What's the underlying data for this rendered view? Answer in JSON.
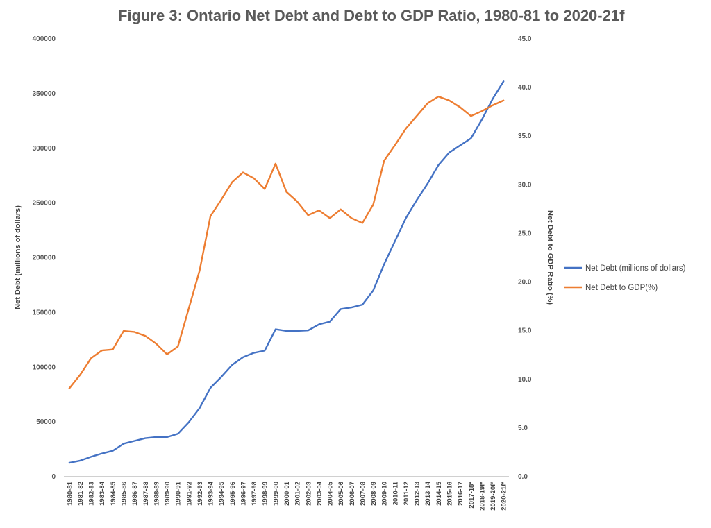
{
  "chart_data": {
    "type": "line",
    "title": "Figure 3: Ontario Net Debt and Debt to GDP Ratio, 1980-81  to 2020-21f",
    "xlabel": "",
    "ylabel_left": "Net Debt (millions of dollars)",
    "ylabel_right": "Net Debt to GDP Ratio (%)",
    "ylim_left": [
      0,
      400000
    ],
    "ylim_right": [
      0,
      45
    ],
    "yticks_left": [
      "0",
      "50000",
      "100000",
      "150000",
      "200000",
      "250000",
      "300000",
      "350000",
      "400000"
    ],
    "yticks_right": [
      "0.0",
      "5.0",
      "10.0",
      "15.0",
      "20.0",
      "25.0",
      "30.0",
      "35.0",
      "40.0",
      "45.0"
    ],
    "legend_position": "right",
    "categories": [
      "1980-81",
      "1981-82",
      "1982-83",
      "1983-84",
      "1984-85",
      "1985-86",
      "1986-87",
      "1987-88",
      "1988-89",
      "1989-90",
      "1990-91",
      "1991-92",
      "1992-93",
      "1993-94",
      "1994-95",
      "1995-96",
      "1996-97",
      "1997-98",
      "1998-99",
      "1999-00",
      "2000-01",
      "2001-02",
      "2002-03",
      "2003-04",
      "2004-05",
      "2005-06",
      "2006-07",
      "2007-08",
      "2008-09",
      "2009-10",
      "2010-11",
      "2011-12",
      "2012-13",
      "2013-14",
      "2014-15",
      "2015-16",
      "2016-17",
      "2017-18*",
      "2018-19f*",
      "2019-20f*",
      "2020-21f*"
    ],
    "series": [
      {
        "name": "Net Debt (millions of dollars)",
        "axis": "left",
        "color": "#4472c4",
        "values": [
          12000,
          14000,
          17500,
          20500,
          23000,
          29500,
          32000,
          34500,
          35500,
          35500,
          38500,
          49000,
          62000,
          80500,
          90500,
          101500,
          108500,
          112500,
          114500,
          134000,
          132500,
          132500,
          133000,
          138500,
          141000,
          152500,
          154000,
          156500,
          169500,
          193500,
          214500,
          235500,
          252000,
          267000,
          284000,
          295500,
          302000,
          308500,
          325500,
          344500,
          360500
        ]
      },
      {
        "name": "Net Debt to GDP(%)",
        "axis": "right",
        "color": "#ed7d31",
        "values": [
          9.0,
          10.4,
          12.1,
          12.9,
          13.0,
          14.9,
          14.8,
          14.4,
          13.6,
          12.5,
          13.3,
          17.2,
          21.1,
          26.7,
          28.4,
          30.2,
          31.2,
          30.6,
          29.5,
          32.1,
          29.2,
          28.2,
          26.8,
          27.3,
          26.5,
          27.4,
          26.5,
          26.0,
          27.9,
          32.4,
          34.0,
          35.7,
          37.0,
          38.3,
          39.0,
          38.6,
          37.9,
          37.0,
          37.5,
          38.1,
          38.6
        ]
      }
    ]
  }
}
